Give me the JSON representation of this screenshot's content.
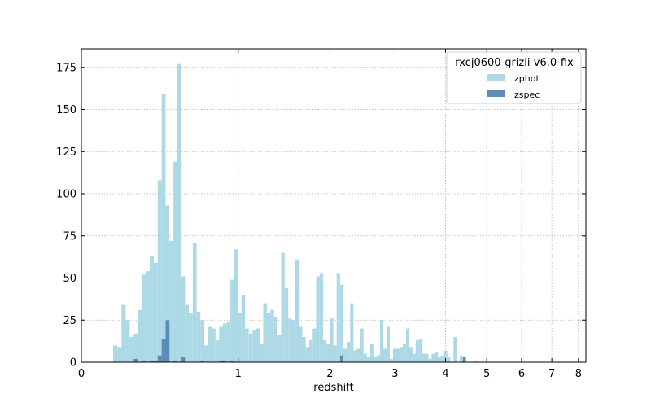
{
  "chart_data": {
    "type": "bar",
    "title": "",
    "xlabel": "redshift",
    "ylabel": "",
    "x_scale": "log(1+z)",
    "xlim": [
      0,
      8.3
    ],
    "ylim": [
      0,
      186
    ],
    "x_ticks": [
      0,
      1,
      2,
      3,
      4,
      5,
      6,
      7,
      8
    ],
    "y_ticks": [
      0,
      25,
      50,
      75,
      100,
      125,
      150,
      175
    ],
    "grid": true,
    "legend": {
      "title": "rxcj0600-grizli-v6.0-fix",
      "position": "top-right"
    },
    "bin_edges": [
      0.151,
      0.172,
      0.194,
      0.216,
      0.238,
      0.26,
      0.283,
      0.306,
      0.329,
      0.353,
      0.377,
      0.401,
      0.426,
      0.451,
      0.476,
      0.502,
      0.528,
      0.554,
      0.581,
      0.608,
      0.636,
      0.664,
      0.692,
      0.721,
      0.75,
      0.779,
      0.809,
      0.839,
      0.87,
      0.901,
      0.932,
      0.964,
      0.996,
      1.029,
      1.062,
      1.096,
      1.13,
      1.164,
      1.199,
      1.234,
      1.27,
      1.306,
      1.343,
      1.38,
      1.418,
      1.456,
      1.495,
      1.534,
      1.574,
      1.614,
      1.655,
      1.696,
      1.738,
      1.78,
      1.823,
      1.866,
      1.91,
      1.954,
      1.999,
      2.044,
      2.09,
      2.137,
      2.184,
      2.232,
      2.28,
      2.329,
      2.379,
      2.429,
      2.48,
      2.531,
      2.583,
      2.636,
      2.689,
      2.743,
      2.798,
      2.853,
      2.909,
      2.966,
      3.023,
      3.081,
      3.14,
      3.199,
      3.259,
      3.32,
      3.382,
      3.444,
      3.507,
      3.571,
      3.636,
      3.701,
      3.767,
      3.834,
      3.902,
      3.97,
      4.039,
      4.109,
      4.18,
      4.252,
      4.325,
      4.398,
      4.472,
      4.547,
      4.623,
      4.7,
      4.778,
      4.857,
      4.937,
      5.018,
      5.1,
      5.183,
      5.266,
      5.351,
      5.437,
      5.524,
      5.612,
      5.701,
      5.791,
      5.882,
      5.974,
      6.068,
      6.162,
      6.257,
      6.354,
      6.452,
      6.551,
      6.651,
      6.752,
      6.855,
      6.958,
      7.063,
      7.169,
      7.277,
      7.385,
      7.495,
      7.606,
      7.719,
      7.833,
      7.948,
      8.064
    ],
    "series": [
      {
        "name": "zphot",
        "color": "#add8e6",
        "values": [
          10,
          9,
          34,
          25,
          15,
          17,
          31,
          52,
          54,
          63,
          59,
          108,
          159,
          93,
          72,
          119,
          177,
          51,
          34,
          29,
          71,
          30,
          25,
          10,
          21,
          20,
          13,
          21,
          23,
          24,
          49,
          67,
          29,
          40,
          20,
          17,
          19,
          20,
          11,
          35,
          29,
          31,
          27,
          16,
          65,
          44,
          26,
          25,
          61,
          21,
          15,
          9,
          13,
          20,
          51,
          53,
          13,
          11,
          26,
          10,
          53,
          46,
          8,
          12,
          35,
          7,
          8,
          20,
          5,
          3,
          11,
          3,
          4,
          25,
          8,
          21,
          2,
          8,
          8,
          9,
          11,
          20,
          9,
          5,
          13,
          14,
          5,
          5,
          2,
          5,
          6,
          3,
          4,
          7,
          3,
          0,
          15,
          0,
          4,
          1,
          0,
          0,
          0,
          1,
          0,
          0,
          0,
          0,
          0,
          0,
          0,
          0,
          0,
          0,
          0,
          0,
          0,
          0,
          0,
          0,
          0,
          0,
          0,
          0,
          0,
          0,
          0,
          0,
          0,
          0,
          0,
          0,
          0,
          0,
          0,
          0,
          0,
          0,
          0,
          0,
          0,
          0,
          0
        ]
      },
      {
        "name": "zspec",
        "color": "#5b8db8",
        "values": [
          0,
          0,
          0,
          0,
          0,
          2,
          0,
          1,
          0,
          1,
          1,
          4,
          14,
          25,
          0,
          1,
          0,
          3,
          0,
          0,
          0,
          0,
          1,
          0,
          0,
          0,
          0,
          1,
          1,
          0,
          1,
          0,
          0,
          0,
          0,
          0,
          0,
          0,
          0,
          0,
          0,
          0,
          0,
          0,
          0,
          0,
          0,
          0,
          0,
          0,
          0,
          0,
          0,
          0,
          0,
          0,
          0,
          0,
          0,
          0,
          0,
          4,
          0,
          0,
          0,
          0,
          0,
          0,
          0,
          0,
          0,
          0,
          0,
          0,
          0,
          0,
          0,
          0,
          0,
          0,
          0,
          0,
          0,
          0,
          0,
          0,
          0,
          0,
          0,
          0,
          0,
          0,
          0,
          0,
          0,
          0,
          0,
          0,
          0,
          3,
          0,
          0,
          0,
          0,
          0,
          0,
          0,
          0,
          0,
          0,
          0,
          0,
          0,
          0,
          0,
          0,
          0,
          0,
          0,
          0,
          0,
          0,
          0,
          0,
          0,
          0,
          0,
          0,
          0,
          0,
          0,
          0,
          0,
          0,
          0,
          0,
          0,
          0,
          0,
          0,
          0,
          0,
          0
        ]
      }
    ]
  }
}
